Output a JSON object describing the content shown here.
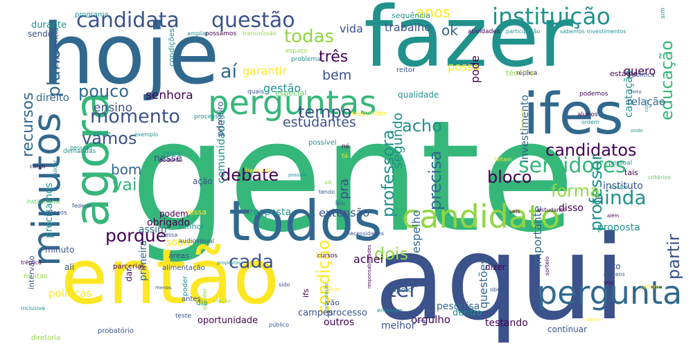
{
  "palette": {
    "dark_purple": "#440154",
    "indigo": "#3b528b",
    "blue": "#31688e",
    "teal": "#21918c",
    "green": "#35b779",
    "light_green": "#5ec962",
    "lime": "#90d743",
    "yellow": "#fde725"
  },
  "words": [
    {
      "text": "gente",
      "color": "#35b779"
    },
    {
      "text": "aqui",
      "color": "#3b528b"
    },
    {
      "text": "fazer",
      "color": "#21918c"
    },
    {
      "text": "hoje",
      "color": "#31688e"
    },
    {
      "text": "então",
      "color": "#fde725"
    },
    {
      "text": "todos",
      "color": "#31688e"
    },
    {
      "text": "agora",
      "color": "#35b779"
    },
    {
      "text": "minutos",
      "color": "#31688e"
    },
    {
      "text": "ifes",
      "color": "#31688e"
    },
    {
      "text": "perguntas",
      "color": "#35b779"
    },
    {
      "text": "candidato",
      "color": "#90d743"
    },
    {
      "text": "pergunta",
      "color": "#31688e"
    },
    {
      "text": "instituição",
      "color": "#21918c"
    },
    {
      "text": "candidata",
      "color": "#3b528b"
    },
    {
      "text": "questão",
      "color": "#3b528b"
    },
    {
      "text": "servidores",
      "color": "#35b779"
    },
    {
      "text": "ainda",
      "color": "#21918c"
    },
    {
      "text": "candidatos",
      "color": "#440154"
    },
    {
      "text": "momento",
      "color": "#3b528b"
    },
    {
      "text": "porque",
      "color": "#440154"
    },
    {
      "text": "cada",
      "color": "#3b528b"
    },
    {
      "text": "todas",
      "color": "#90d743"
    },
    {
      "text": "três",
      "color": "#440154"
    },
    {
      "text": "plano",
      "color": "#31688e"
    },
    {
      "text": "aí",
      "color": "#31688e"
    },
    {
      "text": "tempo",
      "color": "#3b528b"
    },
    {
      "text": "acho",
      "color": "#21918c"
    },
    {
      "text": "precisa",
      "color": "#31688e"
    },
    {
      "text": "ter",
      "color": "#3b528b"
    },
    {
      "text": "vai",
      "color": "#35b779"
    },
    {
      "text": "vamos",
      "color": "#3b528b"
    },
    {
      "text": "pouco",
      "color": "#31688e"
    },
    {
      "text": "educação",
      "color": "#35b779"
    },
    {
      "text": "professora",
      "color": "#21918c"
    },
    {
      "text": "professor",
      "color": "#21918c"
    },
    {
      "text": "debate",
      "color": "#440154"
    },
    {
      "text": "bloco",
      "color": "#440154"
    },
    {
      "text": "forma",
      "color": "#90d743"
    },
    {
      "text": "partir",
      "color": "#3b528b"
    },
    {
      "text": "dois",
      "color": "#90d743"
    },
    {
      "text": "condição",
      "color": "#fde725"
    },
    {
      "text": "recursos",
      "color": "#31688e"
    },
    {
      "text": "anos",
      "color": "#fde725"
    },
    {
      "text": "bom",
      "color": "#31688e"
    },
    {
      "text": "bem",
      "color": "#3b528b"
    },
    {
      "text": "estudantes",
      "color": "#3b528b"
    },
    {
      "text": "segundo",
      "color": "#21918c"
    },
    {
      "text": "ensino",
      "color": "#3b528b"
    },
    {
      "text": "senhora",
      "color": "#440154"
    },
    {
      "text": "direito",
      "color": "#31688e"
    },
    {
      "text": "gestão",
      "color": "#21918c"
    },
    {
      "text": "vida",
      "color": "#3b528b"
    },
    {
      "text": "trabalho",
      "color": "#3b528b"
    },
    {
      "text": "ok",
      "color": "#31688e"
    },
    {
      "text": "possa",
      "color": "#fde725"
    },
    {
      "text": "pode",
      "color": "#440154"
    },
    {
      "text": "quero",
      "color": "#440154"
    },
    {
      "text": "garantir",
      "color": "#fde725"
    },
    {
      "text": "captação",
      "color": "#21918c"
    },
    {
      "text": "relação",
      "color": "#31688e"
    },
    {
      "text": "investimento",
      "color": "#31688e"
    },
    {
      "text": "comunidade",
      "color": "#21918c"
    },
    {
      "text": "pra",
      "color": "#3b528b"
    },
    {
      "text": "extensão",
      "color": "#3b528b"
    },
    {
      "text": "resposta",
      "color": "#21918c"
    },
    {
      "text": "obrigado",
      "color": "#440154"
    },
    {
      "text": "achei",
      "color": "#440154"
    },
    {
      "text": "importante",
      "color": "#31688e"
    },
    {
      "text": "questões",
      "color": "#31688e"
    },
    {
      "text": "espelho",
      "color": "#31688e"
    },
    {
      "text": "instituto",
      "color": "#3b528b"
    },
    {
      "text": "proposta",
      "color": "#21918c"
    },
    {
      "text": "disso",
      "color": "#440154"
    },
    {
      "text": "assim",
      "color": "#31688e"
    },
    {
      "text": "nesse",
      "color": "#3b528b"
    },
    {
      "text": "ação",
      "color": "#3b528b"
    },
    {
      "text": "podem",
      "color": "#440154"
    },
    {
      "text": "sobre",
      "color": "#fde725"
    },
    {
      "text": "precisamos",
      "color": "#21918c"
    },
    {
      "text": "minuto",
      "color": "#3b528b"
    },
    {
      "text": "primeira",
      "color": "#31688e"
    },
    {
      "text": "orgulho",
      "color": "#440154"
    },
    {
      "text": "pesquisa",
      "color": "#31688e"
    },
    {
      "text": "testando",
      "color": "#440154"
    },
    {
      "text": "outros",
      "color": "#440154"
    },
    {
      "text": "dentro",
      "color": "#21918c"
    },
    {
      "text": "oportunidade",
      "color": "#440154"
    },
    {
      "text": "processo",
      "color": "#3b528b"
    },
    {
      "text": "campes",
      "color": "#3b528b"
    },
    {
      "text": "melhor",
      "color": "#3b528b"
    },
    {
      "text": "políticas",
      "color": "#fde725"
    },
    {
      "text": "intervalo",
      "color": "#3b528b"
    },
    {
      "text": "ali",
      "color": "#3b528b"
    },
    {
      "text": "muitas",
      "color": "#90d743"
    },
    {
      "text": "alimentação",
      "color": "#3b528b"
    },
    {
      "text": "parcerias",
      "color": "#440154"
    },
    {
      "text": "áreas",
      "color": "#3b528b"
    },
    {
      "text": "senhor",
      "color": "#21918c"
    },
    {
      "text": "dar",
      "color": "#440154"
    },
    {
      "text": "apoio",
      "color": "#31688e"
    },
    {
      "text": "fato",
      "color": "#3b528b"
    },
    {
      "text": "dizer",
      "color": "#440154"
    },
    {
      "text": "vão",
      "color": "#3b528b"
    },
    {
      "text": "ifs",
      "color": "#440154"
    },
    {
      "text": "dia",
      "color": "#21918c"
    },
    {
      "text": "poder",
      "color": "#21918c"
    },
    {
      "text": "antes",
      "color": "#3b528b"
    },
    {
      "text": "teste",
      "color": "#3b528b"
    },
    {
      "text": "continuar",
      "color": "#3b528b"
    },
    {
      "text": "diretoria",
      "color": "#90d743"
    },
    {
      "text": "probatório",
      "color": "#3b528b"
    },
    {
      "text": "durante",
      "color": "#21918c"
    },
    {
      "text": "sendo",
      "color": "#3b528b"
    },
    {
      "text": "programa",
      "color": "#21918c"
    },
    {
      "text": "sequência",
      "color": "#21918c"
    },
    {
      "text": "atividades",
      "color": "#440154"
    },
    {
      "text": "participação",
      "color": "#21918c"
    },
    {
      "text": "sabemos",
      "color": "#21918c"
    },
    {
      "text": "investimentos",
      "color": "#21918c"
    },
    {
      "text": "sim",
      "color": "#21918c"
    },
    {
      "text": "experiência",
      "color": "#3b528b"
    },
    {
      "text": "possamos",
      "color": "#440154"
    },
    {
      "text": "transmissão",
      "color": "#90d743"
    },
    {
      "text": "ampliar",
      "color": "#21918c"
    },
    {
      "text": "espaço",
      "color": "#90d743"
    },
    {
      "text": "problema",
      "color": "#21918c"
    },
    {
      "text": "reitor",
      "color": "#3b528b"
    },
    {
      "text": "réplica",
      "color": "#440154"
    },
    {
      "text": "técnico",
      "color": "#90d743"
    },
    {
      "text": "estágio",
      "color": "#440154"
    },
    {
      "text": "política",
      "color": "#3b528b"
    },
    {
      "text": "feito",
      "color": "#3b528b"
    },
    {
      "text": "especial",
      "color": "#5ec962"
    },
    {
      "text": "quais",
      "color": "#3b528b"
    },
    {
      "text": "qualidade",
      "color": "#21918c"
    },
    {
      "text": "primeiro",
      "color": "#3b528b"
    },
    {
      "text": "condições",
      "color": "#21918c"
    },
    {
      "text": "podemos",
      "color": "#440154"
    },
    {
      "text": "coisa",
      "color": "#21918c"
    },
    {
      "text": "processos",
      "color": "#21918c"
    },
    {
      "text": "responder",
      "color": "#fde725"
    },
    {
      "text": "alunos",
      "color": "#440154"
    },
    {
      "text": "ordem",
      "color": "#21918c"
    },
    {
      "text": "onde",
      "color": "#21918c"
    },
    {
      "text": "formular",
      "color": "#fde725"
    },
    {
      "text": "existe",
      "color": "#21918c"
    },
    {
      "text": "pessoas",
      "color": "#21918c"
    },
    {
      "text": "demandas",
      "color": "#21918c"
    },
    {
      "text": "exemplo",
      "color": "#21918c"
    },
    {
      "text": "possível",
      "color": "#21918c"
    },
    {
      "text": "né",
      "color": "#440154"
    },
    {
      "text": "tá",
      "color": "#fde725"
    },
    {
      "text": "bancada",
      "color": "#fde725"
    },
    {
      "text": "central",
      "color": "#21918c"
    },
    {
      "text": "poderão",
      "color": "#440154"
    },
    {
      "text": "faltam",
      "color": "#fde725"
    },
    {
      "text": "pessoal",
      "color": "#21918c"
    },
    {
      "text": "tais",
      "color": "#440154"
    },
    {
      "text": "cargo",
      "color": "#440154"
    },
    {
      "text": "cuidar",
      "color": "#21918c"
    },
    {
      "text": "institucional",
      "color": "#5ec962"
    },
    {
      "text": "federal",
      "color": "#3b528b"
    },
    {
      "text": "blocos",
      "color": "#3b528b"
    },
    {
      "text": "possam",
      "color": "#21918c"
    },
    {
      "text": "alô",
      "color": "#90d743"
    },
    {
      "text": "tendo",
      "color": "#3b528b"
    },
    {
      "text": "eh",
      "color": "#21918c"
    },
    {
      "text": "têm",
      "color": "#3b528b"
    },
    {
      "text": "seis",
      "color": "#440154"
    },
    {
      "text": "estudantil",
      "color": "#440154"
    },
    {
      "text": "além",
      "color": "#440154"
    },
    {
      "text": "equipe",
      "color": "#21918c"
    },
    {
      "text": "critérios",
      "color": "#5ec962"
    },
    {
      "text": "dessa",
      "color": "#3b528b"
    },
    {
      "text": "necessidades",
      "color": "#3b528b"
    },
    {
      "text": "audiovisual",
      "color": "#3b528b"
    },
    {
      "text": "cursos",
      "color": "#440154"
    },
    {
      "text": "tréplica",
      "color": "#440154"
    },
    {
      "text": "propostas",
      "color": "#21918c"
    },
    {
      "text": "menos",
      "color": "#3b528b"
    },
    {
      "text": "sido",
      "color": "#3b528b"
    },
    {
      "text": "outras",
      "color": "#fde725"
    },
    {
      "text": "criação",
      "color": "#90d743"
    },
    {
      "text": "atender",
      "color": "#90d743"
    },
    {
      "text": "articulação",
      "color": "#21918c"
    },
    {
      "text": "responsabilidades",
      "color": "#440154"
    },
    {
      "text": "entender",
      "color": "#21918c"
    },
    {
      "text": "criar",
      "color": "#3b528b"
    },
    {
      "text": "público",
      "color": "#3b528b"
    },
    {
      "text": "dores",
      "color": "#fde725"
    },
    {
      "text": "obras",
      "color": "#3b528b"
    },
    {
      "text": "sorteio",
      "color": "#440154"
    },
    {
      "text": "núcleos",
      "color": "#3b528b"
    },
    {
      "text": "vou",
      "color": "#440154"
    },
    {
      "text": "reitora",
      "color": "#fde725"
    },
    {
      "text": "inclusive",
      "color": "#21918c"
    },
    {
      "text": "nessa",
      "color": "#fde725"
    },
    {
      "text": "3",
      "color": "#3b528b"
    },
    {
      "text": "muitos",
      "color": "#440154"
    }
  ]
}
